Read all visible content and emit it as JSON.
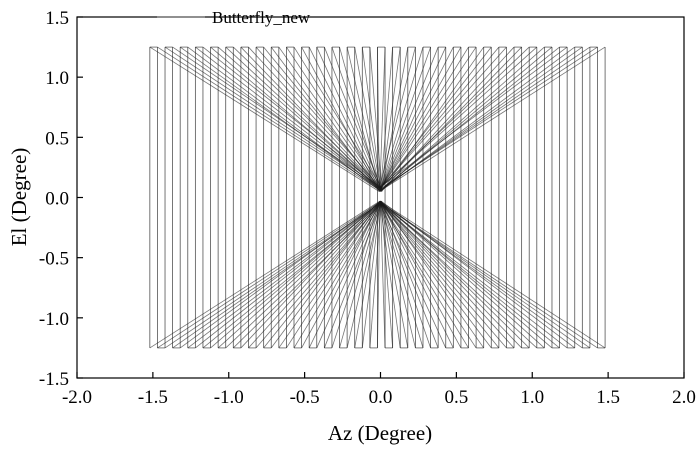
{
  "chart_data": {
    "type": "line",
    "title": "",
    "xlabel": "Az (Degree)",
    "ylabel": "El (Degree)",
    "xlim": [
      -2.0,
      2.0
    ],
    "ylim": [
      -1.5,
      1.5
    ],
    "xticks": [
      "-2.0",
      "-1.5",
      "-1.0",
      "-0.5",
      "0.0",
      "0.5",
      "1.0",
      "1.5",
      "2.0"
    ],
    "yticks": [
      "1.5",
      "1.0",
      "0.5",
      "0.0",
      "-0.5",
      "-1.0",
      "-1.5"
    ],
    "grid": false,
    "legend": {
      "position": "top-left",
      "entries": [
        "Butterfly_new"
      ]
    },
    "series": [
      {
        "name": "Butterfly_new",
        "color": "#1a1a1a",
        "pattern": "butterfly raster scan: 61 vertical sweeps at x from -1.52 to 1.52 (step 0.05), top y 1.25, bottom y -1.25, connected through center points near (0.0, 0.05) and (0.0, -0.03)",
        "sweep_x_start": -1.52,
        "sweep_x_end": 1.52,
        "sweep_x_step": 0.05,
        "top_y": 1.25,
        "bottom_y": -1.25,
        "center_upper_y": 0.05,
        "center_lower_y": -0.03
      }
    ]
  }
}
